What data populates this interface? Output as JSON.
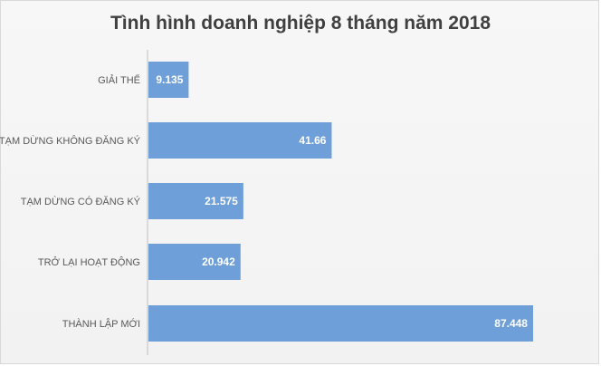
{
  "chart_data": {
    "type": "bar",
    "orientation": "horizontal",
    "title": "Tình hình doanh nghiệp 8 tháng năm 2018",
    "categories": [
      "GIẢI THỂ",
      "TẠM DỪNG KHÔNG ĐĂNG KÝ",
      "TẠM DỪNG CÓ ĐĂNG KÝ",
      "TRỞ LẠI HOẠT ĐỘNG",
      "THÀNH LẬP MỚI"
    ],
    "values": [
      9.135,
      41.66,
      21.575,
      20.942,
      87.448
    ],
    "value_labels": [
      "9.135",
      "41.66",
      "21.575",
      "20.942",
      "87.448"
    ],
    "xlim": [
      0,
      90
    ],
    "grid": false,
    "legend": "none",
    "bar_color": "#6f9fd8"
  }
}
